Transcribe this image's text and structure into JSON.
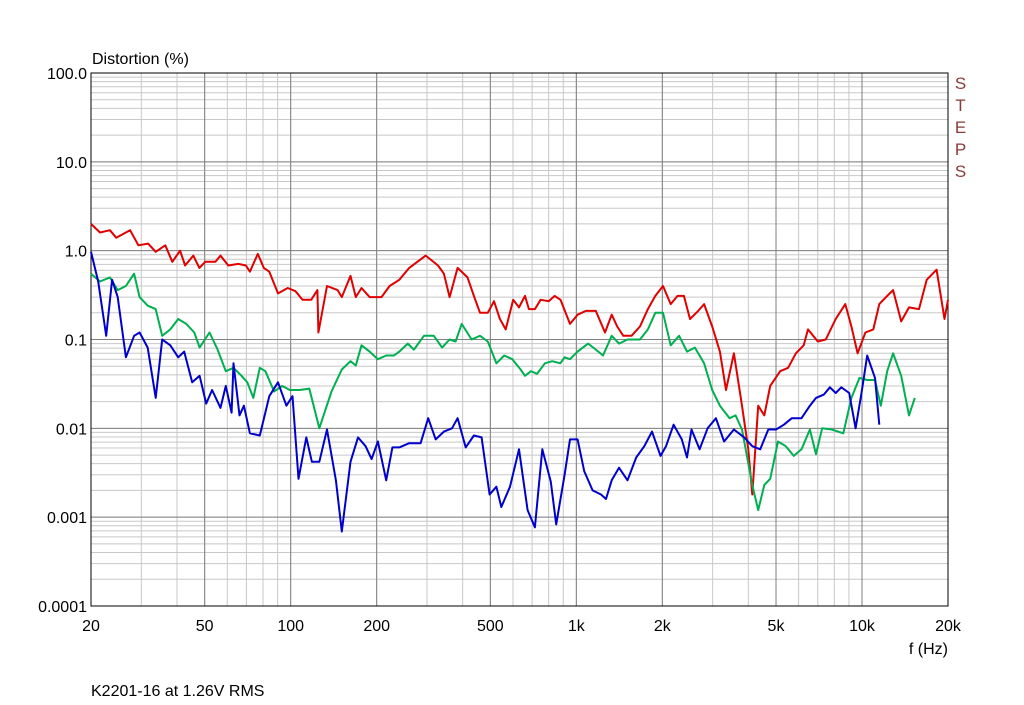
{
  "chart_data": {
    "type": "line",
    "y_label": "Distortion (%)",
    "x_label": "f (Hz)",
    "annotation": "STEPS",
    "footer": "K2201-16 at 1.26V RMS",
    "log_x": true,
    "log_y": true,
    "grid": true,
    "xlim": [
      20,
      20000
    ],
    "ylim": [
      0.0001,
      100
    ],
    "xticks": [
      20,
      50,
      100,
      200,
      500,
      {
        "value": 1000,
        "label": "1k"
      },
      {
        "value": 2000,
        "label": "2k"
      },
      {
        "value": 5000,
        "label": "5k"
      },
      {
        "value": 10000,
        "label": "10k"
      },
      {
        "value": 20000,
        "label": "20k"
      }
    ],
    "yticks": [
      {
        "value": 100,
        "label": "100.0"
      },
      {
        "value": 10,
        "label": "10.0"
      },
      {
        "value": 1,
        "label": "1.0"
      },
      0.1,
      0.01,
      0.001,
      0.0001
    ],
    "series": [
      {
        "color": "#e00000",
        "x": [
          20,
          21.5,
          23.3,
          24.5,
          27.4,
          29.3,
          31.7,
          33.7,
          36.4,
          38.5,
          41,
          42.7,
          45.6,
          47.9,
          50.2,
          54.5,
          56.8,
          60.5,
          65.5,
          69.7,
          72,
          76.7,
          80.5,
          84.2,
          90.3,
          97.6,
          104,
          110,
          118,
          124,
          125,
          134,
          146,
          151,
          162,
          169,
          177,
          189,
          208,
          222,
          240,
          260,
          297,
          328,
          344,
          360,
          384,
          416,
          438,
          460,
          490,
          515,
          540,
          566,
          601,
          630,
          661,
          682,
          716,
          750,
          800,
          840,
          880,
          950,
          1010,
          1080,
          1170,
          1260,
          1330,
          1390,
          1460,
          1560,
          1670,
          1780,
          1890,
          2010,
          2140,
          2260,
          2380,
          2500,
          2670,
          2800,
          2990,
          3180,
          3340,
          3560,
          3800,
          4000,
          4130,
          4330,
          4550,
          4770,
          5170,
          5510,
          5870,
          6250,
          6470,
          7000,
          7470,
          8090,
          8740,
          9180,
          9650,
          10280,
          10950,
          11500,
          12250,
          12850,
          13710,
          14600,
          15830,
          16850,
          18250,
          19450,
          20000
        ],
        "values": [
          2.0,
          1.6,
          1.7,
          1.4,
          1.7,
          1.15,
          1.2,
          0.97,
          1.15,
          0.75,
          1.0,
          0.68,
          0.88,
          0.64,
          0.75,
          0.75,
          0.88,
          0.68,
          0.71,
          0.68,
          0.58,
          0.92,
          0.64,
          0.58,
          0.33,
          0.38,
          0.35,
          0.28,
          0.28,
          0.36,
          0.12,
          0.4,
          0.36,
          0.3,
          0.52,
          0.3,
          0.38,
          0.3,
          0.3,
          0.4,
          0.47,
          0.64,
          0.88,
          0.68,
          0.55,
          0.3,
          0.64,
          0.5,
          0.31,
          0.2,
          0.2,
          0.27,
          0.17,
          0.13,
          0.28,
          0.23,
          0.31,
          0.22,
          0.22,
          0.28,
          0.27,
          0.31,
          0.28,
          0.15,
          0.19,
          0.21,
          0.21,
          0.12,
          0.19,
          0.14,
          0.11,
          0.11,
          0.14,
          0.22,
          0.31,
          0.4,
          0.25,
          0.31,
          0.31,
          0.17,
          0.21,
          0.25,
          0.14,
          0.073,
          0.027,
          0.07,
          0.018,
          0.0058,
          0.0018,
          0.018,
          0.014,
          0.03,
          0.044,
          0.048,
          0.07,
          0.086,
          0.13,
          0.095,
          0.1,
          0.17,
          0.25,
          0.14,
          0.07,
          0.12,
          0.13,
          0.25,
          0.31,
          0.36,
          0.16,
          0.23,
          0.22,
          0.47,
          0.61,
          0.17,
          0.28
        ]
      },
      {
        "color": "#00b050",
        "x": [
          20,
          21.5,
          23.3,
          24.8,
          26.5,
          28.3,
          29.6,
          31.6,
          33.7,
          35.5,
          37.9,
          40.4,
          43.1,
          46,
          48,
          52,
          55.5,
          59.3,
          63.1,
          67.3,
          70.5,
          74,
          78,
          81.6,
          87.5,
          93.3,
          99.3,
          107.5,
          116.2,
          126,
          139,
          151,
          162,
          169,
          177,
          189,
          202,
          216,
          230,
          240,
          257,
          270,
          293,
          317,
          339,
          360,
          378,
          397,
          430,
          460,
          490,
          525,
          559,
          597,
          638,
          661,
          694,
          728,
          776,
          823,
          879,
          910,
          950,
          1010,
          1100,
          1170,
          1240,
          1330,
          1410,
          1510,
          1670,
          1780,
          1890,
          2010,
          2140,
          2290,
          2440,
          2600,
          2800,
          2990,
          3180,
          3440,
          3610,
          3800,
          4130,
          4330,
          4550,
          4770,
          5080,
          5410,
          5770,
          6140,
          6570,
          6900,
          7250,
          7830,
          8600,
          9180,
          9800,
          10430,
          11100,
          11640,
          12250,
          12850,
          13710,
          14600,
          15300
        ],
        "values": [
          0.55,
          0.45,
          0.5,
          0.36,
          0.4,
          0.55,
          0.3,
          0.24,
          0.22,
          0.11,
          0.13,
          0.17,
          0.15,
          0.12,
          0.081,
          0.12,
          0.077,
          0.044,
          0.048,
          0.039,
          0.033,
          0.022,
          0.048,
          0.044,
          0.026,
          0.03,
          0.027,
          0.027,
          0.028,
          0.01,
          0.026,
          0.046,
          0.057,
          0.051,
          0.086,
          0.073,
          0.06,
          0.066,
          0.066,
          0.073,
          0.09,
          0.077,
          0.11,
          0.11,
          0.081,
          0.1,
          0.095,
          0.15,
          0.1,
          0.11,
          0.095,
          0.054,
          0.066,
          0.06,
          0.046,
          0.039,
          0.044,
          0.041,
          0.054,
          0.057,
          0.054,
          0.063,
          0.06,
          0.073,
          0.09,
          0.077,
          0.066,
          0.11,
          0.09,
          0.1,
          0.1,
          0.13,
          0.2,
          0.2,
          0.086,
          0.11,
          0.073,
          0.081,
          0.054,
          0.027,
          0.018,
          0.013,
          0.014,
          0.0097,
          0.0023,
          0.0012,
          0.0023,
          0.0027,
          0.0071,
          0.0063,
          0.0049,
          0.0058,
          0.0097,
          0.0051,
          0.01,
          0.0097,
          0.0088,
          0.022,
          0.037,
          0.035,
          0.035,
          0.018,
          0.044,
          0.07,
          0.039,
          0.014,
          0.022
        ]
      },
      {
        "color": "#0000cc",
        "x": [
          20,
          21.2,
          22.6,
          23.7,
          24.8,
          26.5,
          28.3,
          29.6,
          31.6,
          33.7,
          35.5,
          37.9,
          40.4,
          42.4,
          45.2,
          48,
          50.6,
          53.1,
          56.8,
          59.3,
          62.1,
          63.1,
          66.2,
          68.6,
          72,
          78,
          84.2,
          90.3,
          96.6,
          101.5,
          106.5,
          113.4,
          118.7,
          126,
          134,
          144,
          151,
          162,
          172,
          183,
          192,
          202,
          216,
          227,
          240,
          260,
          285,
          303,
          322,
          344,
          367,
          384,
          410,
          438,
          466,
          497,
          525,
          546,
          586,
          630,
          675,
          716,
          760,
          814,
          850,
          910,
          950,
          1010,
          1065,
          1140,
          1220,
          1270,
          1330,
          1410,
          1510,
          1620,
          1730,
          1840,
          1970,
          2060,
          2190,
          2340,
          2440,
          2530,
          2700,
          2880,
          3080,
          3290,
          3560,
          3870,
          4130,
          4400,
          4700,
          5000,
          5330,
          5680,
          6140,
          6570,
          6900,
          7350,
          7720,
          8090,
          8460,
          9020,
          9500,
          9960,
          10430,
          11100,
          11500
        ],
        "values": [
          0.97,
          0.45,
          0.11,
          0.47,
          0.3,
          0.063,
          0.11,
          0.12,
          0.081,
          0.022,
          0.1,
          0.086,
          0.063,
          0.073,
          0.033,
          0.039,
          0.019,
          0.027,
          0.017,
          0.03,
          0.015,
          0.054,
          0.014,
          0.018,
          0.0088,
          0.0083,
          0.023,
          0.033,
          0.018,
          0.023,
          0.0027,
          0.0079,
          0.0042,
          0.0042,
          0.0097,
          0.0026,
          0.00069,
          0.0042,
          0.0079,
          0.0063,
          0.0045,
          0.0071,
          0.0026,
          0.0061,
          0.0061,
          0.0068,
          0.0068,
          0.013,
          0.0075,
          0.0092,
          0.01,
          0.013,
          0.0061,
          0.0083,
          0.0079,
          0.0018,
          0.0022,
          0.0013,
          0.0022,
          0.0058,
          0.0012,
          0.00077,
          0.0058,
          0.0025,
          0.00083,
          0.003,
          0.0075,
          0.0075,
          0.0033,
          0.002,
          0.0018,
          0.0016,
          0.0026,
          0.0036,
          0.0026,
          0.0047,
          0.0063,
          0.0092,
          0.0049,
          0.0063,
          0.011,
          0.0075,
          0.0047,
          0.0097,
          0.0058,
          0.01,
          0.013,
          0.0071,
          0.0097,
          0.0079,
          0.0063,
          0.0058,
          0.0097,
          0.0097,
          0.011,
          0.013,
          0.013,
          0.018,
          0.022,
          0.024,
          0.029,
          0.025,
          0.029,
          0.025,
          0.01,
          0.025,
          0.066,
          0.037,
          0.011
        ]
      }
    ]
  }
}
